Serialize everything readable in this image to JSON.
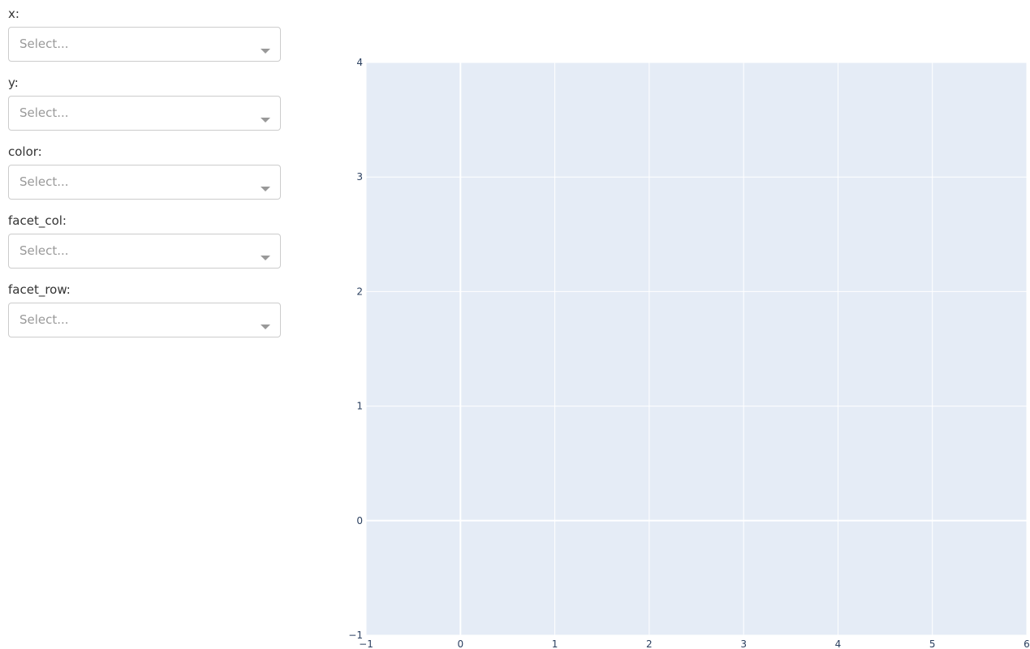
{
  "controls": [
    {
      "label": "x:",
      "placeholder": "Select..."
    },
    {
      "label": "y:",
      "placeholder": "Select..."
    },
    {
      "label": "color:",
      "placeholder": "Select..."
    },
    {
      "label": "facet_col:",
      "placeholder": "Select..."
    },
    {
      "label": "facet_row:",
      "placeholder": "Select..."
    }
  ],
  "chart_data": {
    "type": "scatter",
    "series": [],
    "xlim": [
      -1,
      6
    ],
    "xticks": [
      {
        "value": -1,
        "label": "−1"
      },
      0,
      1,
      2,
      3,
      4,
      5,
      6
    ],
    "ylim": [
      -1,
      4
    ],
    "yticks": [
      {
        "value": -1,
        "label": "−1"
      },
      0,
      1,
      2,
      3,
      4
    ],
    "grid": true
  }
}
